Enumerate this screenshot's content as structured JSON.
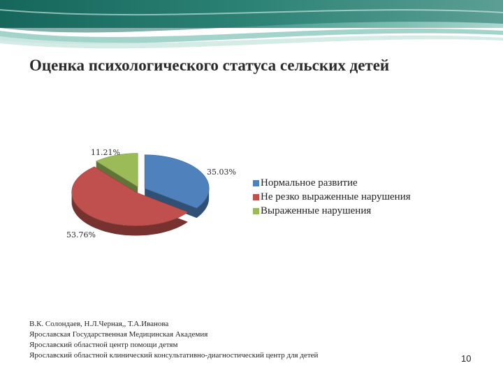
{
  "title": "Оценка психологического статуса сельских детей",
  "chart_data": {
    "type": "pie",
    "categories": [
      "Нормальное развитие",
      "Не резко выраженные нарушения",
      "Выраженные нарушения"
    ],
    "values": [
      35.03,
      53.76,
      11.21
    ],
    "value_labels": [
      "35.03%",
      "53.76%",
      "11.21%"
    ],
    "colors": [
      "#4f81bd",
      "#c0504d",
      "#9bbb59"
    ],
    "legend_position": "right",
    "three_d": true
  },
  "credits": [
    "В.К. Солондаев, Н.Л.Черная,, Т.А.Иванова",
    "Ярославская Государственная Медицинская Академия",
    "Ярославский областной центр помощи детям",
    "Ярославский областной клинический консультативно-диагностический центр для детей"
  ],
  "page_number": "10"
}
